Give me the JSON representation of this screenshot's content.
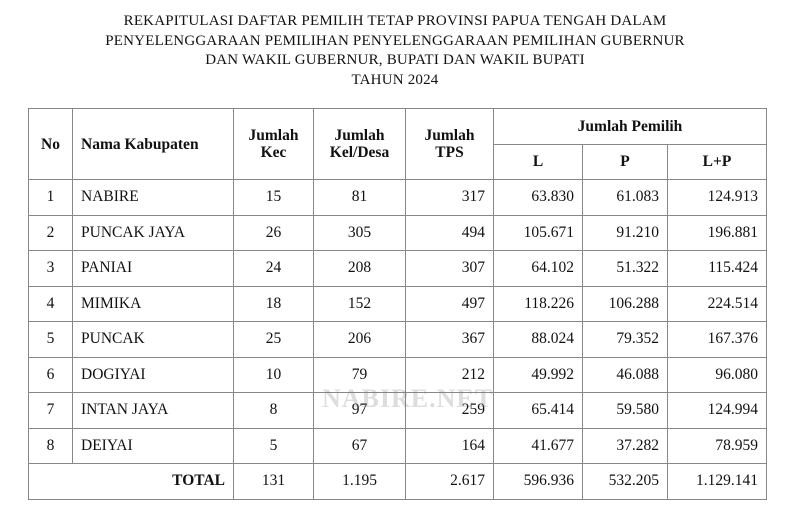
{
  "header": {
    "title_lines": [
      "REKAPITULASI DAFTAR PEMILIH TETAP PROVINSI PAPUA TENGAH DALAM",
      "PENYELENGGARAAN PEMILIHAN PENYELENGGARAAN PEMILIHAN GUBERNUR",
      "DAN WAKIL GUBERNUR, BUPATI DAN WAKIL BUPATI",
      "TAHUN 2024"
    ]
  },
  "table": {
    "columns": [
      "No",
      "Nama Kabupaten",
      "Jumlah\nKec",
      "Jumlah\nKel/Desa",
      "Jumlah\nTPS"
    ],
    "group_header": "Jumlah Pemilih",
    "sub_columns": [
      "L",
      "P",
      "L+P"
    ],
    "rows": [
      [
        "1",
        "NABIRE",
        "15",
        "81",
        "317",
        "63.830",
        "61.083",
        "124.913"
      ],
      [
        "2",
        "PUNCAK JAYA",
        "26",
        "305",
        "494",
        "105.671",
        "91.210",
        "196.881"
      ],
      [
        "3",
        "PANIAI",
        "24",
        "208",
        "307",
        "64.102",
        "51.322",
        "115.424"
      ],
      [
        "4",
        "MIMIKA",
        "18",
        "152",
        "497",
        "118.226",
        "106.288",
        "224.514"
      ],
      [
        "5",
        "PUNCAK",
        "25",
        "206",
        "367",
        "88.024",
        "79.352",
        "167.376"
      ],
      [
        "6",
        "DOGIYAI",
        "10",
        "79",
        "212",
        "49.992",
        "46.088",
        "96.080"
      ],
      [
        "7",
        "INTAN JAYA",
        "8",
        "97",
        "259",
        "65.414",
        "59.580",
        "124.994"
      ],
      [
        "8",
        "DEIYAI",
        "5",
        "67",
        "164",
        "41.677",
        "37.282",
        "78.959"
      ]
    ],
    "total": [
      "TOTAL",
      "131",
      "1.195",
      "2.617",
      "596.936",
      "532.205",
      "1.129.141"
    ]
  },
  "watermark": "NABIRE.NET"
}
